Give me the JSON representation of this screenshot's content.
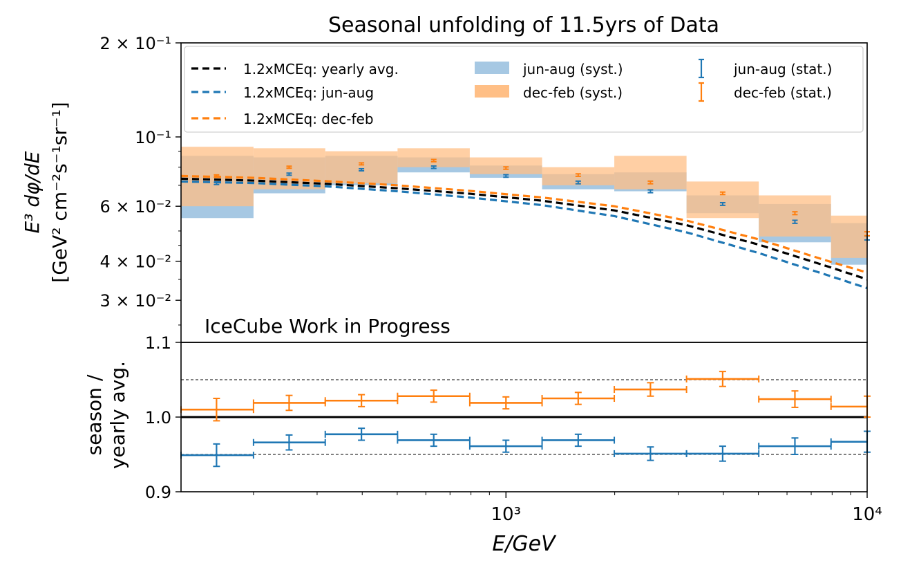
{
  "figure": {
    "title": "Seasonal unfolding of 11.5yrs of Data",
    "watermark": "IceCube Work in Progress",
    "watermark_color": "#e8000b",
    "ylabel_top_line1": "E³ dφ/dE",
    "ylabel_top_line2": "[GeV² cm⁻²s⁻¹sr⁻¹]",
    "ylabel_bottom_line1": "season /",
    "ylabel_bottom_line2": "yearly avg.",
    "xlabel": "E/GeV"
  },
  "colors": {
    "blue": "#1f77b4",
    "orange": "#ff7f0e",
    "black": "#000000",
    "blue_band": "#a6c8e3",
    "orange_band": "#ffbf86",
    "overlap_band": "#c29a7b"
  },
  "legend": [
    {
      "label": "1.2xMCEq: yearly avg.",
      "style": "dashed-line",
      "color": "black"
    },
    {
      "label": "1.2xMCEq: jun-aug",
      "style": "dashed-line",
      "color": "blue"
    },
    {
      "label": "1.2xMCEq: dec-feb",
      "style": "dashed-line",
      "color": "orange"
    },
    {
      "label": "jun-aug (syst.)",
      "style": "patch",
      "color": "blue_band"
    },
    {
      "label": "dec-feb (syst.)",
      "style": "patch",
      "color": "orange_band"
    },
    {
      "label": "jun-aug (stat.)",
      "style": "errorbar",
      "color": "blue"
    },
    {
      "label": "dec-feb (stat.)",
      "style": "errorbar",
      "color": "orange"
    }
  ],
  "chart_data": [
    {
      "type": "bar",
      "panel": "top",
      "title": "Seasonal unfolding of 11.5yrs of Data",
      "ylabel": "E^3 dφ/dE [GeV^2 cm^-2 s^-1 sr^-1]",
      "xscale": "log",
      "yscale": "log",
      "xlim": [
        126,
        10000
      ],
      "ylim": [
        0.022,
        0.2
      ],
      "y_ticks": [
        {
          "value": 0.2,
          "label": "2 × 10⁻¹"
        },
        {
          "value": 0.1,
          "label": "10⁻¹"
        },
        {
          "value": 0.06,
          "label": "6 × 10⁻²"
        },
        {
          "value": 0.04,
          "label": "4 × 10⁻²"
        },
        {
          "value": 0.03,
          "label": "3 × 10⁻²"
        }
      ],
      "bin_edges": [
        126,
        200,
        316,
        501,
        794,
        1259,
        1995,
        3162,
        5012,
        7943,
        10000
      ],
      "bin_centers": [
        158,
        251,
        398,
        631,
        1000,
        1585,
        2512,
        3981,
        6310,
        10000
      ],
      "series": [
        {
          "name": "jun-aug (syst.)",
          "kind": "band",
          "color": "blue_band",
          "low": [
            0.055,
            0.066,
            0.07,
            0.077,
            0.074,
            0.068,
            0.067,
            0.057,
            0.046,
            0.039
          ],
          "high": [
            0.087,
            0.086,
            0.087,
            0.086,
            0.081,
            0.076,
            0.077,
            0.065,
            0.061,
            0.053
          ]
        },
        {
          "name": "dec-feb (syst.)",
          "kind": "band",
          "color": "orange_band",
          "low": [
            0.06,
            0.068,
            0.071,
            0.08,
            0.076,
            0.07,
            0.068,
            0.055,
            0.048,
            0.041
          ],
          "high": [
            0.093,
            0.092,
            0.09,
            0.092,
            0.086,
            0.08,
            0.087,
            0.072,
            0.065,
            0.056
          ]
        },
        {
          "name": "jun-aug (stat.)",
          "kind": "errorbar",
          "color": "blue",
          "values": [
            0.071,
            0.076,
            0.0785,
            0.08,
            0.075,
            0.0715,
            0.067,
            0.061,
            0.0535,
            0.0475
          ],
          "err": [
            0.0006,
            0.0006,
            0.0006,
            0.0007,
            0.0007,
            0.0007,
            0.0007,
            0.0006,
            0.0006,
            0.0007
          ]
        },
        {
          "name": "dec-feb (stat.)",
          "kind": "errorbar",
          "color": "orange",
          "values": [
            0.075,
            0.08,
            0.082,
            0.084,
            0.0795,
            0.0755,
            0.0715,
            0.066,
            0.057,
            0.049
          ],
          "err": [
            0.0006,
            0.0006,
            0.0006,
            0.0007,
            0.0007,
            0.0007,
            0.0007,
            0.0006,
            0.0006,
            0.0007
          ]
        },
        {
          "name": "1.2xMCEq: yearly avg.",
          "kind": "dashed-line",
          "color": "black",
          "x": [
            126,
            200,
            316,
            501,
            794,
            1259,
            1995,
            3162,
            5012,
            7943,
            10000
          ],
          "values": [
            0.0735,
            0.0725,
            0.0708,
            0.0685,
            0.0658,
            0.0625,
            0.0582,
            0.0522,
            0.0452,
            0.0382,
            0.035
          ]
        },
        {
          "name": "1.2xMCEq: jun-aug",
          "kind": "dashed-line",
          "color": "blue",
          "x": [
            126,
            200,
            316,
            501,
            794,
            1259,
            1995,
            3162,
            5012,
            7943,
            10000
          ],
          "values": [
            0.072,
            0.0712,
            0.0695,
            0.067,
            0.064,
            0.0605,
            0.0558,
            0.0495,
            0.0425,
            0.0358,
            0.0328
          ]
        },
        {
          "name": "1.2xMCEq: dec-feb",
          "kind": "dashed-line",
          "color": "orange",
          "x": [
            126,
            200,
            316,
            501,
            794,
            1259,
            1995,
            3162,
            5012,
            7943,
            10000
          ],
          "values": [
            0.075,
            0.074,
            0.0722,
            0.07,
            0.0672,
            0.064,
            0.06,
            0.054,
            0.047,
            0.0398,
            0.0368
          ]
        }
      ]
    },
    {
      "type": "line",
      "panel": "bottom",
      "xlabel": "E/GeV",
      "ylabel": "season / yearly avg.",
      "xscale": "log",
      "xlim": [
        126,
        10000
      ],
      "ylim": [
        0.9,
        1.1
      ],
      "y_ticks": [
        {
          "value": 1.1,
          "label": "1.1"
        },
        {
          "value": 1.0,
          "label": "1.0"
        },
        {
          "value": 0.9,
          "label": "0.9"
        }
      ],
      "x_ticks": [
        {
          "value": 1000,
          "label": "10³"
        },
        {
          "value": 10000,
          "label": "10⁴"
        }
      ],
      "reference_lines": [
        {
          "value": 1.0,
          "style": "solid"
        },
        {
          "value": 1.05,
          "style": "dashed"
        },
        {
          "value": 0.95,
          "style": "dashed"
        }
      ],
      "bin_edges": [
        126,
        200,
        316,
        501,
        794,
        1259,
        1995,
        3162,
        5012,
        7943,
        10000
      ],
      "bin_centers": [
        158,
        251,
        398,
        631,
        1000,
        1585,
        2512,
        3981,
        6310,
        10000
      ],
      "series": [
        {
          "name": "dec-feb",
          "color": "orange",
          "values": [
            1.01,
            1.019,
            1.022,
            1.028,
            1.019,
            1.025,
            1.037,
            1.051,
            1.024,
            1.014
          ],
          "err": [
            0.015,
            0.01,
            0.008,
            0.008,
            0.008,
            0.008,
            0.009,
            0.01,
            0.011,
            0.014
          ]
        },
        {
          "name": "jun-aug",
          "color": "blue",
          "values": [
            0.949,
            0.966,
            0.977,
            0.969,
            0.961,
            0.969,
            0.951,
            0.951,
            0.961,
            0.967
          ],
          "err": [
            0.015,
            0.01,
            0.008,
            0.008,
            0.008,
            0.008,
            0.009,
            0.01,
            0.011,
            0.014
          ]
        }
      ]
    }
  ]
}
